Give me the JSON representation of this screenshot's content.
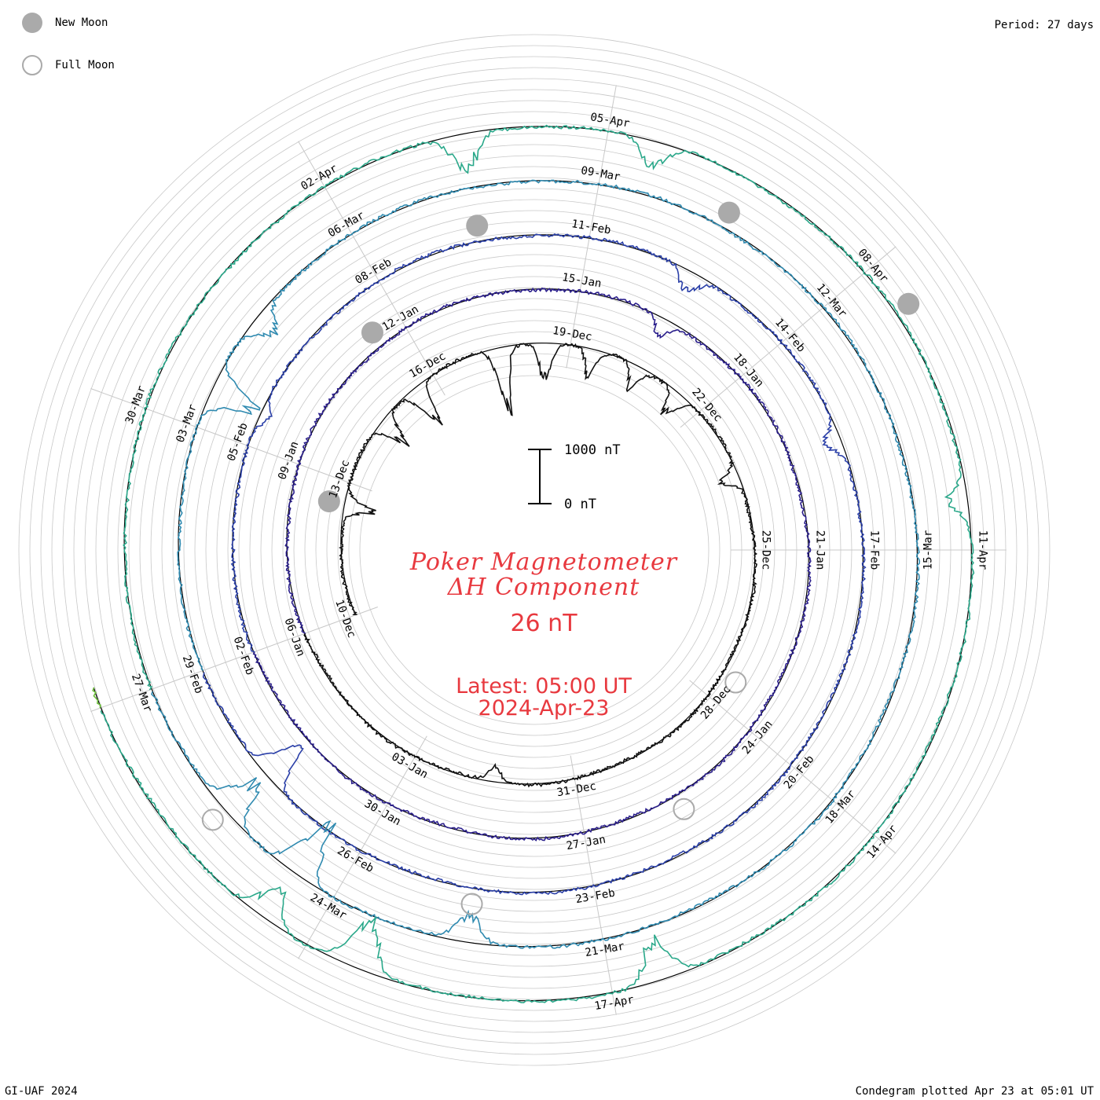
{
  "legend": {
    "new_moon": "New Moon",
    "full_moon": "Full Moon"
  },
  "period_label": "Period: 27 days",
  "title": {
    "line1": "Poker Magnetometer",
    "line2": "ΔH Component"
  },
  "current_value": "26 nT",
  "latest": {
    "line1": "Latest: 05:00 UT",
    "line2": "2024-Apr-23"
  },
  "scale": {
    "top_label": "1000 nT",
    "bottom_label": "0 nT"
  },
  "footer": {
    "left": "GI-UAF 2024",
    "right": "Condegram plotted Apr 23 at 05:01 UT"
  },
  "colors": {
    "title": "#e8393f",
    "grid": "#c8c8c8",
    "moon": "#aaaaaa",
    "cycle_colors": [
      "#111111",
      "#2b1f8c",
      "#2a3fa8",
      "#2f8ab0",
      "#2aa88a",
      "#6cbf3a",
      "#b0b020",
      "#c07a10",
      "#c0301a"
    ]
  },
  "chart_data": {
    "type": "condegram spiral",
    "period_days": 27,
    "units": "nT",
    "date_labels": [
      "10-Dec",
      "13-Dec",
      "16-Dec",
      "19-Dec",
      "22-Dec",
      "25-Dec",
      "28-Dec",
      "31-Dec",
      "03-Jan",
      "06-Jan",
      "09-Jan",
      "12-Jan",
      "15-Jan",
      "18-Jan",
      "21-Jan",
      "24-Jan",
      "27-Jan",
      "30-Jan",
      "02-Feb",
      "05-Feb",
      "08-Feb",
      "11-Feb",
      "14-Feb",
      "17-Feb",
      "20-Feb",
      "23-Feb",
      "26-Feb",
      "29-Feb",
      "03-Mar",
      "06-Mar",
      "09-Mar",
      "12-Mar",
      "15-Mar",
      "18-Mar",
      "21-Mar",
      "24-Mar",
      "27-Mar",
      "30-Mar",
      "02-Apr",
      "05-Apr",
      "08-Apr",
      "11-Apr",
      "14-Apr",
      "17-Apr"
    ],
    "start_date": "2023-Dec-10",
    "end": "2024-Apr-23 05:00 UT",
    "new_moons": [
      "2023-Dec-12",
      "2024-Jan-11",
      "2024-Feb-09",
      "2024-Mar-10",
      "2024-Apr-08"
    ],
    "full_moons": [
      "2023-Dec-27",
      "2024-Jan-25",
      "2024-Feb-24",
      "2024-Mar-25"
    ],
    "disturbances": [
      {
        "date": "2023-Dec-12",
        "magnitude_nT": 600
      },
      {
        "date": "2023-Dec-14",
        "magnitude_nT": 700
      },
      {
        "date": "2023-Dec-15",
        "magnitude_nT": 900
      },
      {
        "date": "2023-Dec-17",
        "magnitude_nT": 1400
      },
      {
        "date": "2023-Dec-18",
        "magnitude_nT": 800
      },
      {
        "date": "2023-Dec-19",
        "magnitude_nT": 600
      },
      {
        "date": "2023-Dec-20",
        "magnitude_nT": 500
      },
      {
        "date": "2023-Dec-21",
        "magnitude_nT": 500
      },
      {
        "date": "2023-Dec-23",
        "magnitude_nT": 400
      },
      {
        "date": "2024-Jan-01",
        "magnitude_nT": 300
      },
      {
        "date": "2024-Jan-16",
        "magnitude_nT": 400
      },
      {
        "date": "2024-Feb-05",
        "magnitude_nT": 250
      },
      {
        "date": "2024-Feb-12",
        "magnitude_nT": 450
      },
      {
        "date": "2024-Feb-15",
        "magnitude_nT": 350
      },
      {
        "date": "2024-Feb-27",
        "magnitude_nT": 900
      },
      {
        "date": "2024-Mar-03",
        "magnitude_nT": 1100
      },
      {
        "date": "2024-Mar-04",
        "magnitude_nT": 500
      },
      {
        "date": "2024-Mar-22",
        "magnitude_nT": 600
      },
      {
        "date": "2024-Mar-24",
        "magnitude_nT": 1300
      },
      {
        "date": "2024-Mar-25",
        "magnitude_nT": 900
      },
      {
        "date": "2024-Apr-03",
        "magnitude_nT": 800
      },
      {
        "date": "2024-Apr-05",
        "magnitude_nT": 600
      },
      {
        "date": "2024-Apr-10",
        "magnitude_nT": 400
      },
      {
        "date": "2024-Apr-16",
        "magnitude_nT": 900
      },
      {
        "date": "2024-Apr-19",
        "magnitude_nT": 1200
      },
      {
        "date": "2024-Apr-20",
        "magnitude_nT": 700
      }
    ]
  }
}
